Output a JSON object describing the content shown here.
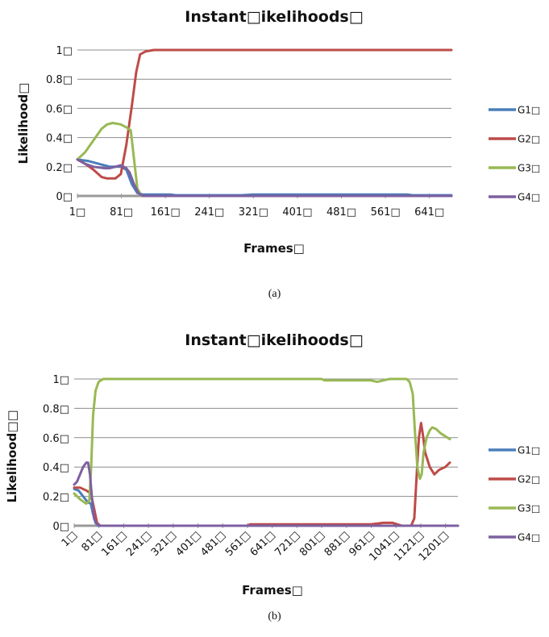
{
  "chart_data": [
    {
      "type": "line",
      "title": "Instant□ikelihoods□",
      "xlabel": "Frames□",
      "ylabel": "Likelihood□",
      "x_tick_labels": [
        "1□",
        "81□",
        "161□",
        "241□",
        "321□",
        "401□",
        "481□",
        "561□",
        "641□"
      ],
      "x_ticks": [
        1,
        81,
        161,
        241,
        321,
        401,
        481,
        561,
        641
      ],
      "y_tick_labels": [
        "0□",
        "0.2□",
        "0.4□",
        "0.6□",
        "0.8□",
        "1□"
      ],
      "y_ticks": [
        0,
        0.2,
        0.4,
        0.6,
        0.8,
        1
      ],
      "xlim": [
        1,
        681
      ],
      "ylim": [
        0,
        1
      ],
      "grid": "horizontal",
      "legend_position": "right",
      "series": [
        {
          "name": "G1□",
          "color": "#4a7ebb",
          "points": [
            [
              1,
              0.25
            ],
            [
              20,
              0.24
            ],
            [
              40,
              0.22
            ],
            [
              60,
              0.2
            ],
            [
              80,
              0.2
            ],
            [
              90,
              0.18
            ],
            [
              100,
              0.08
            ],
            [
              110,
              0.02
            ],
            [
              120,
              0.01
            ],
            [
              170,
              0.01
            ],
            [
              180,
              0.005
            ],
            [
              300,
              0.005
            ],
            [
              320,
              0.01
            ],
            [
              600,
              0.01
            ],
            [
              610,
              0.005
            ],
            [
              681,
              0.005
            ]
          ]
        },
        {
          "name": "G2□",
          "color": "#be4b48",
          "points": [
            [
              1,
              0.25
            ],
            [
              15,
              0.22
            ],
            [
              30,
              0.18
            ],
            [
              45,
              0.13
            ],
            [
              55,
              0.12
            ],
            [
              70,
              0.12
            ],
            [
              80,
              0.15
            ],
            [
              90,
              0.35
            ],
            [
              100,
              0.62
            ],
            [
              108,
              0.85
            ],
            [
              115,
              0.97
            ],
            [
              125,
              0.99
            ],
            [
              140,
              1.0
            ],
            [
              681,
              1.0
            ]
          ]
        },
        {
          "name": "G3□",
          "color": "#98b954",
          "points": [
            [
              1,
              0.25
            ],
            [
              15,
              0.3
            ],
            [
              30,
              0.38
            ],
            [
              45,
              0.46
            ],
            [
              55,
              0.49
            ],
            [
              65,
              0.5
            ],
            [
              80,
              0.49
            ],
            [
              90,
              0.47
            ],
            [
              98,
              0.45
            ],
            [
              104,
              0.25
            ],
            [
              110,
              0.05
            ],
            [
              118,
              0.0
            ],
            [
              681,
              0.0
            ]
          ]
        },
        {
          "name": "G4□",
          "color": "#7d60a0",
          "points": [
            [
              1,
              0.25
            ],
            [
              15,
              0.22
            ],
            [
              30,
              0.2
            ],
            [
              50,
              0.19
            ],
            [
              60,
              0.19
            ],
            [
              70,
              0.2
            ],
            [
              80,
              0.21
            ],
            [
              90,
              0.19
            ],
            [
              96,
              0.16
            ],
            [
              104,
              0.08
            ],
            [
              112,
              0.02
            ],
            [
              120,
              0.0
            ],
            [
              681,
              0.0
            ]
          ]
        }
      ]
    },
    {
      "type": "line",
      "title": "Instant□ikelihoods□",
      "xlabel": "Frames□",
      "ylabel": "Likelihood□□",
      "x_tick_labels": [
        "1□",
        "81□",
        "161□",
        "241□",
        "321□",
        "401□",
        "481□",
        "561□",
        "641□",
        "721□",
        "801□",
        "881□",
        "961□",
        "1041□",
        "1121□",
        "1201□"
      ],
      "x_ticks": [
        1,
        81,
        161,
        241,
        321,
        401,
        481,
        561,
        641,
        721,
        801,
        881,
        961,
        1041,
        1121,
        1201
      ],
      "y_tick_labels": [
        "0□",
        "0.2□",
        "0.4□",
        "0.6□",
        "0.8□",
        "1□"
      ],
      "y_ticks": [
        0,
        0.2,
        0.4,
        0.6,
        0.8,
        1
      ],
      "xlim": [
        1,
        1241
      ],
      "ylim": [
        0,
        1
      ],
      "grid": "horizontal",
      "legend_position": "right",
      "series": [
        {
          "name": "G1□",
          "color": "#4a7ebb",
          "points": [
            [
              1,
              0.25
            ],
            [
              15,
              0.24
            ],
            [
              30,
              0.2
            ],
            [
              45,
              0.16
            ],
            [
              55,
              0.15
            ],
            [
              62,
              0.08
            ],
            [
              70,
              0.02
            ],
            [
              80,
              0.0
            ],
            [
              1241,
              0.0
            ]
          ]
        },
        {
          "name": "G2□",
          "color": "#be4b48",
          "points": [
            [
              1,
              0.26
            ],
            [
              20,
              0.26
            ],
            [
              40,
              0.24
            ],
            [
              55,
              0.22
            ],
            [
              65,
              0.12
            ],
            [
              75,
              0.02
            ],
            [
              85,
              0.0
            ],
            [
              560,
              0.0
            ],
            [
              570,
              0.01
            ],
            [
              960,
              0.01
            ],
            [
              1000,
              0.02
            ],
            [
              1030,
              0.02
            ],
            [
              1060,
              0.0
            ],
            [
              1090,
              0.0
            ],
            [
              1100,
              0.05
            ],
            [
              1108,
              0.35
            ],
            [
              1115,
              0.6
            ],
            [
              1122,
              0.7
            ],
            [
              1128,
              0.62
            ],
            [
              1135,
              0.5
            ],
            [
              1150,
              0.4
            ],
            [
              1165,
              0.35
            ],
            [
              1180,
              0.38
            ],
            [
              1200,
              0.4
            ],
            [
              1215,
              0.43
            ]
          ]
        },
        {
          "name": "G3□",
          "color": "#98b954",
          "points": [
            [
              1,
              0.22
            ],
            [
              20,
              0.18
            ],
            [
              40,
              0.15
            ],
            [
              50,
              0.17
            ],
            [
              56,
              0.4
            ],
            [
              62,
              0.75
            ],
            [
              70,
              0.92
            ],
            [
              80,
              0.98
            ],
            [
              95,
              1.0
            ],
            [
              800,
              1.0
            ],
            [
              810,
              0.99
            ],
            [
              880,
              0.99
            ],
            [
              900,
              0.99
            ],
            [
              960,
              0.99
            ],
            [
              980,
              0.98
            ],
            [
              1000,
              0.99
            ],
            [
              1020,
              1.0
            ],
            [
              1075,
              1.0
            ],
            [
              1085,
              0.98
            ],
            [
              1095,
              0.9
            ],
            [
              1102,
              0.65
            ],
            [
              1110,
              0.4
            ],
            [
              1118,
              0.32
            ],
            [
              1124,
              0.35
            ],
            [
              1130,
              0.5
            ],
            [
              1140,
              0.6
            ],
            [
              1150,
              0.65
            ],
            [
              1158,
              0.67
            ],
            [
              1170,
              0.66
            ],
            [
              1185,
              0.63
            ],
            [
              1200,
              0.61
            ],
            [
              1215,
              0.59
            ]
          ]
        },
        {
          "name": "G4□",
          "color": "#7d60a0",
          "points": [
            [
              1,
              0.28
            ],
            [
              10,
              0.3
            ],
            [
              20,
              0.35
            ],
            [
              30,
              0.4
            ],
            [
              40,
              0.43
            ],
            [
              46,
              0.43
            ],
            [
              52,
              0.35
            ],
            [
              58,
              0.2
            ],
            [
              65,
              0.05
            ],
            [
              75,
              0.01
            ],
            [
              85,
              0.0
            ],
            [
              1241,
              0.0
            ]
          ]
        }
      ]
    }
  ],
  "captions": [
    "(a)",
    "(b)"
  ]
}
